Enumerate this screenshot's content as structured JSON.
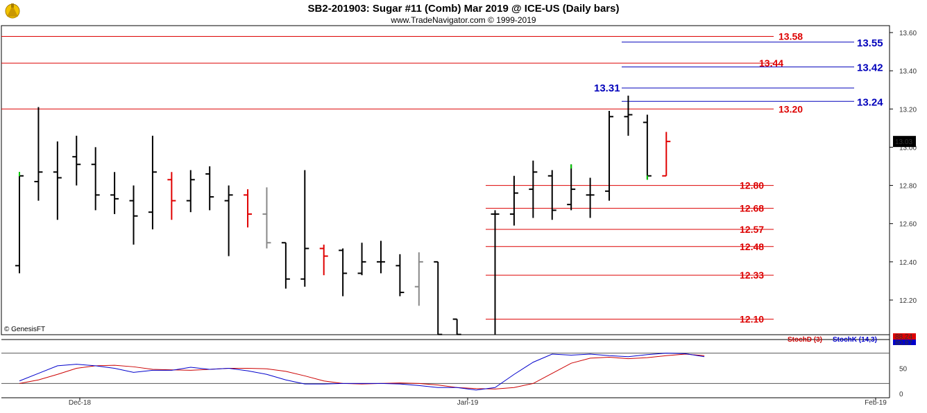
{
  "header": {
    "title": "SB2-201903:  Sugar #11 (Comb) Mar 2019 @ ICE-US  (Daily bars)",
    "subtitle": "www.TradeNavigator.com © 1999-2019"
  },
  "watermark": "© GenesisFT",
  "colors": {
    "bar_default": "#000000",
    "bar_up_close_mark": "#00cc00",
    "bar_red": "#e00000",
    "bar_gray": "#888888",
    "level_red": "#dd0000",
    "level_blue": "#0000bb",
    "stoch_d": "#cc0000",
    "stoch_k": "#0000cc"
  },
  "chart_data": [
    {
      "type": "bar",
      "subtype": "ohlc",
      "ylim": [
        12.0,
        13.65
      ],
      "y_ticks": [
        "13.60",
        "13.40",
        "13.20",
        "13.00",
        "12.80",
        "12.60",
        "12.40",
        "12.20"
      ],
      "x_ticks": [
        "Dec-18",
        "Jan-19",
        "Feb-19"
      ],
      "last_price": "13.03",
      "bars": [
        {
          "o": 12.38,
          "h": 12.87,
          "l": 12.34,
          "c": 12.85,
          "style": "green"
        },
        {
          "o": 12.82,
          "h": 13.21,
          "l": 12.72,
          "c": 12.87,
          "style": "black"
        },
        {
          "o": 12.87,
          "h": 13.03,
          "l": 12.62,
          "c": 12.84,
          "style": "black"
        },
        {
          "o": 12.95,
          "h": 13.06,
          "l": 12.8,
          "c": 12.91,
          "style": "black"
        },
        {
          "o": 12.91,
          "h": 13.0,
          "l": 12.67,
          "c": 12.75,
          "style": "black"
        },
        {
          "o": 12.75,
          "h": 12.87,
          "l": 12.65,
          "c": 12.73,
          "style": "black"
        },
        {
          "o": 12.72,
          "h": 12.8,
          "l": 12.49,
          "c": 12.64,
          "style": "black"
        },
        {
          "o": 12.66,
          "h": 13.06,
          "l": 12.57,
          "c": 12.87,
          "style": "black"
        },
        {
          "o": 12.83,
          "h": 12.87,
          "l": 12.62,
          "c": 12.72,
          "style": "red"
        },
        {
          "o": 12.72,
          "h": 12.88,
          "l": 12.66,
          "c": 12.83,
          "style": "black"
        },
        {
          "o": 12.86,
          "h": 12.9,
          "l": 12.67,
          "c": 12.74,
          "style": "black"
        },
        {
          "o": 12.72,
          "h": 12.8,
          "l": 12.43,
          "c": 12.75,
          "style": "black"
        },
        {
          "o": 12.75,
          "h": 12.78,
          "l": 12.58,
          "c": 12.65,
          "style": "red"
        },
        {
          "o": 12.65,
          "h": 12.79,
          "l": 12.47,
          "c": 12.5,
          "style": "gray"
        },
        {
          "o": 12.5,
          "h": 12.5,
          "l": 12.26,
          "c": 12.31,
          "style": "black"
        },
        {
          "o": 12.31,
          "h": 12.88,
          "l": 12.27,
          "c": 12.47,
          "style": "black"
        },
        {
          "o": 12.47,
          "h": 12.49,
          "l": 12.33,
          "c": 12.43,
          "style": "red"
        },
        {
          "o": 12.46,
          "h": 12.47,
          "l": 12.22,
          "c": 12.34,
          "style": "black"
        },
        {
          "o": 12.34,
          "h": 12.5,
          "l": 12.33,
          "c": 12.4,
          "style": "black"
        },
        {
          "o": 12.4,
          "h": 12.51,
          "l": 12.34,
          "c": 12.4,
          "style": "black"
        },
        {
          "o": 12.38,
          "h": 12.44,
          "l": 12.22,
          "c": 12.24,
          "style": "black"
        },
        {
          "o": 12.27,
          "h": 12.45,
          "l": 12.17,
          "c": 12.4,
          "style": "gray"
        },
        {
          "o": 12.4,
          "h": 12.4,
          "l": 12.02,
          "c": 12.02,
          "style": "black"
        },
        {
          "o": 12.1,
          "h": 12.1,
          "l": 12.02,
          "c": 12.02,
          "style": "black"
        },
        {
          "o": null,
          "h": null,
          "l": null,
          "c": null,
          "style": "none"
        },
        {
          "o": 12.65,
          "h": 12.67,
          "l": 12.02,
          "c": 12.65,
          "style": "black"
        },
        {
          "o": 12.65,
          "h": 12.85,
          "l": 12.59,
          "c": 12.76,
          "style": "black"
        },
        {
          "o": 12.78,
          "h": 12.93,
          "l": 12.63,
          "c": 12.87,
          "style": "black"
        },
        {
          "o": 12.85,
          "h": 12.88,
          "l": 12.62,
          "c": 12.67,
          "style": "black"
        },
        {
          "o": 12.7,
          "h": 12.91,
          "l": 12.67,
          "c": 12.78,
          "style": "green"
        },
        {
          "o": 12.75,
          "h": 12.84,
          "l": 12.63,
          "c": 12.75,
          "style": "black"
        },
        {
          "o": 12.77,
          "h": 13.19,
          "l": 12.72,
          "c": 13.16,
          "style": "black"
        },
        {
          "o": 13.16,
          "h": 13.27,
          "l": 13.06,
          "c": 13.17,
          "style": "black"
        },
        {
          "o": 13.13,
          "h": 13.17,
          "l": 12.83,
          "c": 12.85,
          "style": "green"
        },
        {
          "o": 12.85,
          "h": 13.08,
          "l": 12.85,
          "c": 13.03,
          "style": "red"
        }
      ],
      "levels_red": [
        {
          "value": 13.58,
          "label": "13.58"
        },
        {
          "value": 13.44,
          "label": "13.44"
        },
        {
          "value": 13.2,
          "label": "13.20"
        },
        {
          "value": 12.8,
          "label": "12.80"
        },
        {
          "value": 12.68,
          "label": "12.68"
        },
        {
          "value": 12.57,
          "label": "12.57"
        },
        {
          "value": 12.48,
          "label": "12.48"
        },
        {
          "value": 12.33,
          "label": "12.33"
        },
        {
          "value": 12.1,
          "label": "12.10"
        }
      ],
      "levels_blue": [
        {
          "value": 13.55,
          "label": "13.55"
        },
        {
          "value": 13.42,
          "label": "13.42"
        },
        {
          "value": 13.31,
          "label": "13.31"
        },
        {
          "value": 13.24,
          "label": "13.24"
        }
      ]
    },
    {
      "type": "line",
      "ylim": [
        0,
        100
      ],
      "y_ticks": [
        "50",
        "0"
      ],
      "legend": [
        "StochD (3)",
        "StochK (14,3)"
      ],
      "value_labels": [
        "88.24",
        "80.87"
      ],
      "series": [
        {
          "name": "StochD (3)",
          "values": [
            20,
            27,
            38,
            50,
            55,
            56,
            53,
            48,
            47,
            46,
            48,
            50,
            50,
            49,
            44,
            35,
            25,
            20,
            19,
            20,
            21,
            20,
            17,
            12,
            10,
            9,
            12,
            20,
            40,
            60,
            70,
            72,
            69,
            71,
            75,
            78,
            75
          ]
        },
        {
          "name": "StochK (14,3)",
          "values": [
            25,
            40,
            55,
            58,
            55,
            50,
            42,
            46,
            46,
            52,
            48,
            50,
            45,
            38,
            27,
            19,
            19,
            20,
            20,
            20,
            19,
            16,
            12,
            12,
            7,
            12,
            38,
            62,
            78,
            76,
            78,
            75,
            73,
            77,
            80,
            79,
            73
          ]
        }
      ]
    }
  ]
}
